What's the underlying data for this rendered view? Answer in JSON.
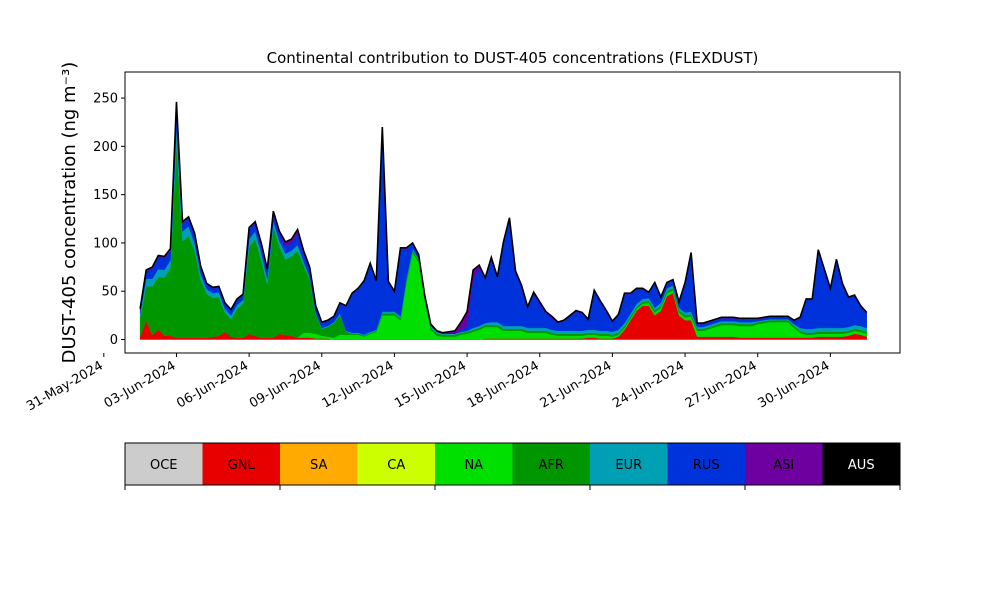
{
  "chart_data": {
    "type": "area",
    "title": "Continental contribution to DUST-405 concentrations (FLEXDUST)",
    "ylabel": "DUST-405 concentration (ng m⁻³)",
    "xlabel": "",
    "ylim": [
      -14,
      277
    ],
    "xlim": [
      "2024-05-31T21:00",
      "2024-07-02T21:00"
    ],
    "yticks": [
      0,
      50,
      100,
      150,
      200,
      250
    ],
    "xticks": [
      {
        "date": "2024-05-31",
        "label": "31-May-2024"
      },
      {
        "date": "2024-06-03",
        "label": "03-Jun-2024"
      },
      {
        "date": "2024-06-06",
        "label": "06-Jun-2024"
      },
      {
        "date": "2024-06-09",
        "label": "09-Jun-2024"
      },
      {
        "date": "2024-06-12",
        "label": "12-Jun-2024"
      },
      {
        "date": "2024-06-15",
        "label": "15-Jun-2024"
      },
      {
        "date": "2024-06-18",
        "label": "18-Jun-2024"
      },
      {
        "date": "2024-06-21",
        "label": "21-Jun-2024"
      },
      {
        "date": "2024-06-24",
        "label": "24-Jun-2024"
      },
      {
        "date": "2024-06-27",
        "label": "27-Jun-2024"
      },
      {
        "date": "2024-06-30",
        "label": "30-Jun-2024"
      }
    ],
    "grid": false,
    "legend_placement": "below",
    "legend": [
      {
        "name": "OCE",
        "color": "#cccccc",
        "text_color": "#000000"
      },
      {
        "name": "GNL",
        "color": "#e60000",
        "text_color": "#000000"
      },
      {
        "name": "SA",
        "color": "#ffaa00",
        "text_color": "#000000"
      },
      {
        "name": "CA",
        "color": "#ccff00",
        "text_color": "#000000"
      },
      {
        "name": "NA",
        "color": "#00e000",
        "text_color": "#000000"
      },
      {
        "name": "AFR",
        "color": "#009600",
        "text_color": "#000000"
      },
      {
        "name": "EUR",
        "color": "#00a0b4",
        "text_color": "#000000"
      },
      {
        "name": "RUS",
        "color": "#0032dc",
        "text_color": "#000000"
      },
      {
        "name": "ASI",
        "color": "#6e00a0",
        "text_color": "#000000"
      },
      {
        "name": "AUS",
        "color": "#000000",
        "text_color": "#ffffff"
      }
    ],
    "series_order": [
      "GNL",
      "NA",
      "AFR",
      "EUR",
      "RUS",
      "ASI"
    ],
    "x": [
      "2024-06-01T12:00",
      "2024-06-01T18:00",
      "2024-06-02T00:00",
      "2024-06-02T06:00",
      "2024-06-02T12:00",
      "2024-06-02T18:00",
      "2024-06-03T00:00",
      "2024-06-03T06:00",
      "2024-06-03T12:00",
      "2024-06-03T18:00",
      "2024-06-04T00:00",
      "2024-06-04T06:00",
      "2024-06-04T12:00",
      "2024-06-04T18:00",
      "2024-06-05T00:00",
      "2024-06-05T06:00",
      "2024-06-05T12:00",
      "2024-06-05T18:00",
      "2024-06-06T00:00",
      "2024-06-06T06:00",
      "2024-06-06T12:00",
      "2024-06-06T18:00",
      "2024-06-07T00:00",
      "2024-06-07T06:00",
      "2024-06-07T12:00",
      "2024-06-07T18:00",
      "2024-06-08T00:00",
      "2024-06-08T06:00",
      "2024-06-08T12:00",
      "2024-06-08T18:00",
      "2024-06-09T00:00",
      "2024-06-09T06:00",
      "2024-06-09T12:00",
      "2024-06-09T18:00",
      "2024-06-10T00:00",
      "2024-06-10T06:00",
      "2024-06-10T12:00",
      "2024-06-10T18:00",
      "2024-06-11T00:00",
      "2024-06-11T06:00",
      "2024-06-11T12:00",
      "2024-06-11T18:00",
      "2024-06-12T00:00",
      "2024-06-12T06:00",
      "2024-06-12T12:00",
      "2024-06-12T18:00",
      "2024-06-13T00:00",
      "2024-06-13T06:00",
      "2024-06-13T12:00",
      "2024-06-13T18:00",
      "2024-06-14T00:00",
      "2024-06-14T06:00",
      "2024-06-14T12:00",
      "2024-06-14T18:00",
      "2024-06-15T00:00",
      "2024-06-15T06:00",
      "2024-06-15T12:00",
      "2024-06-15T18:00",
      "2024-06-16T00:00",
      "2024-06-16T06:00",
      "2024-06-16T12:00",
      "2024-06-16T18:00",
      "2024-06-17T00:00",
      "2024-06-17T06:00",
      "2024-06-17T12:00",
      "2024-06-17T18:00",
      "2024-06-18T00:00",
      "2024-06-18T06:00",
      "2024-06-18T12:00",
      "2024-06-18T18:00",
      "2024-06-19T00:00",
      "2024-06-19T06:00",
      "2024-06-19T12:00",
      "2024-06-19T18:00",
      "2024-06-20T00:00",
      "2024-06-20T06:00",
      "2024-06-20T12:00",
      "2024-06-20T18:00",
      "2024-06-21T00:00",
      "2024-06-21T06:00",
      "2024-06-21T12:00",
      "2024-06-21T18:00",
      "2024-06-22T00:00",
      "2024-06-22T06:00",
      "2024-06-22T12:00",
      "2024-06-22T18:00",
      "2024-06-23T00:00",
      "2024-06-23T06:00",
      "2024-06-23T12:00",
      "2024-06-23T18:00",
      "2024-06-24T00:00",
      "2024-06-24T06:00",
      "2024-06-24T12:00",
      "2024-06-24T18:00",
      "2024-06-25T00:00",
      "2024-06-25T06:00",
      "2024-06-25T12:00",
      "2024-06-25T18:00",
      "2024-06-26T00:00",
      "2024-06-26T06:00",
      "2024-06-26T12:00",
      "2024-06-26T18:00",
      "2024-06-27T00:00",
      "2024-06-27T06:00",
      "2024-06-27T12:00",
      "2024-06-27T18:00",
      "2024-06-28T00:00",
      "2024-06-28T06:00",
      "2024-06-28T12:00",
      "2024-06-28T18:00",
      "2024-06-29T00:00",
      "2024-06-29T06:00",
      "2024-06-29T12:00",
      "2024-06-29T18:00",
      "2024-06-30T00:00",
      "2024-06-30T06:00",
      "2024-06-30T12:00",
      "2024-06-30T18:00",
      "2024-07-01T00:00",
      "2024-07-01T06:00",
      "2024-07-01T12:00"
    ],
    "series": [
      {
        "name": "GNL",
        "color": "#e60000",
        "values": [
          3,
          20,
          5,
          10,
          4,
          4,
          2,
          2,
          2,
          2,
          2,
          2,
          3,
          4,
          8,
          3,
          2,
          2,
          6,
          4,
          2,
          2,
          2,
          6,
          5,
          4,
          2,
          2,
          2,
          1,
          1,
          1,
          0,
          0,
          0,
          0,
          0,
          0,
          0,
          0,
          0,
          0,
          0,
          0,
          0,
          0,
          0,
          0,
          0,
          0,
          0,
          0,
          0,
          0,
          0,
          0,
          0,
          1,
          1,
          1,
          1,
          1,
          1,
          1,
          1,
          1,
          1,
          1,
          1,
          1,
          1,
          1,
          1,
          1,
          2,
          2,
          1,
          1,
          1,
          3,
          10,
          20,
          30,
          35,
          35,
          25,
          30,
          45,
          48,
          25,
          20,
          20,
          3,
          3,
          3,
          3,
          3,
          3,
          3,
          2,
          2,
          2,
          2,
          2,
          2,
          2,
          2,
          2,
          2,
          2,
          2,
          2,
          3,
          3,
          3,
          3,
          3,
          4,
          6,
          5,
          3
        ]
      },
      {
        "name": "NA",
        "color": "#00e000",
        "values": [
          0,
          0,
          0,
          0,
          0,
          0,
          0,
          0,
          0,
          0,
          0,
          0,
          0,
          0,
          0,
          0,
          0,
          0,
          0,
          0,
          0,
          0,
          0,
          0,
          0,
          0,
          0,
          5,
          5,
          5,
          3,
          2,
          2,
          5,
          5,
          5,
          5,
          3,
          6,
          8,
          25,
          25,
          25,
          20,
          60,
          90,
          80,
          40,
          10,
          4,
          3,
          3,
          3,
          5,
          6,
          8,
          10,
          12,
          12,
          12,
          8,
          8,
          8,
          8,
          6,
          6,
          6,
          6,
          4,
          3,
          3,
          3,
          3,
          3,
          3,
          3,
          3,
          3,
          2,
          2,
          2,
          2,
          2,
          2,
          3,
          3,
          3,
          3,
          3,
          3,
          3,
          4,
          6,
          6,
          8,
          10,
          12,
          12,
          12,
          12,
          12,
          12,
          14,
          15,
          16,
          16,
          16,
          16,
          10,
          5,
          3,
          3,
          3,
          3,
          3,
          3,
          3,
          3,
          3,
          3,
          3
        ]
      },
      {
        "name": "AFR",
        "color": "#009600",
        "values": [
          20,
          35,
          50,
          55,
          60,
          70,
          200,
          100,
          105,
          90,
          60,
          45,
          40,
          40,
          20,
          18,
          30,
          35,
          90,
          100,
          80,
          55,
          115,
          90,
          78,
          82,
          90,
          70,
          55,
          20,
          7,
          10,
          15,
          20,
          3,
          1,
          1,
          1,
          1,
          1,
          2,
          2,
          2,
          2,
          2,
          2,
          2,
          2,
          2,
          2,
          2,
          2,
          2,
          2,
          2,
          2,
          2,
          2,
          2,
          2,
          2,
          2,
          2,
          2,
          2,
          2,
          2,
          2,
          2,
          2,
          2,
          2,
          2,
          2,
          2,
          2,
          2,
          2,
          2,
          2,
          2,
          2,
          2,
          2,
          2,
          2,
          2,
          2,
          2,
          2,
          2,
          2,
          2,
          2,
          2,
          2,
          2,
          2,
          2,
          2,
          2,
          2,
          2,
          2,
          2,
          2,
          2,
          2,
          2,
          2,
          2,
          2,
          2,
          2,
          2,
          2,
          2,
          2,
          2,
          2,
          2
        ]
      },
      {
        "name": "EUR",
        "color": "#00a0b4",
        "values": [
          4,
          8,
          8,
          8,
          8,
          8,
          20,
          10,
          10,
          8,
          6,
          5,
          5,
          5,
          4,
          4,
          4,
          4,
          8,
          8,
          8,
          6,
          6,
          6,
          6,
          6,
          6,
          4,
          3,
          2,
          1,
          1,
          1,
          2,
          1,
          1,
          1,
          1,
          1,
          1,
          2,
          2,
          2,
          2,
          2,
          2,
          2,
          2,
          2,
          2,
          1,
          1,
          1,
          1,
          1,
          2,
          2,
          2,
          3,
          3,
          3,
          3,
          3,
          3,
          3,
          3,
          3,
          3,
          3,
          3,
          3,
          3,
          3,
          3,
          3,
          3,
          3,
          3,
          3,
          3,
          3,
          3,
          3,
          3,
          3,
          3,
          3,
          3,
          3,
          3,
          3,
          3,
          2,
          2,
          2,
          2,
          2,
          2,
          2,
          2,
          2,
          2,
          1,
          1,
          1,
          1,
          1,
          1,
          2,
          3,
          4,
          4,
          4,
          4,
          4,
          4,
          4,
          4,
          4,
          4,
          4
        ]
      },
      {
        "name": "RUS",
        "color": "#0032dc",
        "values": [
          4,
          8,
          10,
          12,
          12,
          10,
          20,
          8,
          8,
          8,
          6,
          5,
          5,
          5,
          5,
          5,
          5,
          5,
          10,
          8,
          8,
          8,
          8,
          8,
          8,
          8,
          12,
          8,
          8,
          6,
          5,
          5,
          5,
          10,
          25,
          40,
          45,
          55,
          70,
          50,
          190,
          30,
          20,
          70,
          30,
          5,
          3,
          1,
          1,
          0,
          0,
          0,
          0,
          2,
          5,
          50,
          60,
          45,
          65,
          45,
          85,
          110,
          55,
          40,
          20,
          35,
          25,
          15,
          12,
          8,
          10,
          15,
          20,
          18,
          10,
          40,
          30,
          20,
          10,
          15,
          30,
          20,
          15,
          10,
          5,
          25,
          5,
          5,
          5,
          5,
          30,
          60,
          3,
          3,
          3,
          3,
          3,
          3,
          3,
          3,
          3,
          3,
          2,
          2,
          2,
          2,
          2,
          2,
          3,
          10,
          30,
          30,
          80,
          60,
          40,
          70,
          45,
          30,
          30,
          20,
          15
        ]
      },
      {
        "name": "ASI",
        "color": "#6e00a0",
        "values": [
          1,
          1,
          2,
          2,
          2,
          2,
          4,
          2,
          2,
          2,
          2,
          1,
          1,
          1,
          1,
          1,
          1,
          1,
          2,
          2,
          2,
          2,
          2,
          2,
          4,
          4,
          4,
          3,
          2,
          1,
          1,
          1,
          1,
          1,
          1,
          1,
          1,
          1,
          1,
          1,
          1,
          1,
          1,
          1,
          1,
          1,
          1,
          1,
          1,
          1,
          1,
          2,
          3,
          8,
          15,
          10,
          3,
          2,
          2,
          2,
          2,
          2,
          2,
          2,
          2,
          2,
          2,
          2,
          2,
          1,
          1,
          1,
          1,
          1,
          1,
          1,
          1,
          1,
          1,
          1,
          1,
          1,
          1,
          1,
          1,
          1,
          1,
          1,
          1,
          1,
          1,
          1,
          1,
          1,
          1,
          1,
          1,
          1,
          1,
          1,
          1,
          1,
          1,
          1,
          1,
          1,
          1,
          1,
          1,
          1,
          1,
          1,
          1,
          1,
          1,
          1,
          1,
          1,
          1,
          1,
          1
        ]
      }
    ]
  }
}
